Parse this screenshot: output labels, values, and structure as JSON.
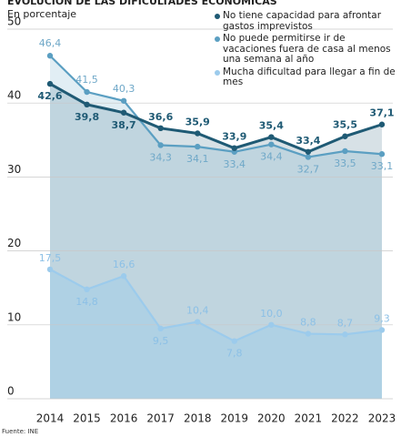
{
  "chart_data": {
    "type": "line",
    "title": "EVOLUCIÓN DE LAS DIFICULTADES ECONÓMICAS",
    "subtitle": "En porcentaje",
    "source": "Fuente: INE",
    "categories": [
      "2014",
      "2015",
      "2016",
      "2017",
      "2018",
      "2019",
      "2020",
      "2021",
      "2022",
      "2023"
    ],
    "series": [
      {
        "name": "No tiene capacidad para afrontar gastos imprevistos",
        "color": "#1f5a74",
        "values": [
          42.6,
          39.8,
          38.7,
          36.6,
          35.9,
          33.9,
          35.4,
          33.4,
          35.5,
          37.1
        ],
        "value_labels": [
          "42,6",
          "39,8",
          "38,7",
          "36,6",
          "35,9",
          "33,9",
          "35,4",
          "33,4",
          "35,5",
          "37,1"
        ]
      },
      {
        "name": "No puede permitirse ir de vacaciones fuera de casa al menos una semana al año",
        "color": "#5b9fc2",
        "values": [
          46.4,
          41.5,
          40.3,
          34.3,
          34.1,
          33.4,
          34.4,
          32.7,
          33.5,
          33.1
        ],
        "value_labels": [
          "46,4",
          "41,5",
          "40,3",
          "34,3",
          "34,1",
          "33,4",
          "34,4",
          "32,7",
          "33,5",
          "33,1"
        ]
      },
      {
        "name": "Mucha dificultad para llegar a fin de mes",
        "color": "#9ccbec",
        "values": [
          17.5,
          14.8,
          16.6,
          9.5,
          10.4,
          7.8,
          10.0,
          8.8,
          8.7,
          9.3
        ],
        "value_labels": [
          "17,5",
          "14,8",
          "16,6",
          "9,5",
          "10,4",
          "7,8",
          "10,0",
          "8,8",
          "8,7",
          "9,3"
        ]
      }
    ],
    "ylim": [
      0,
      50
    ],
    "yticks": [
      0,
      10,
      20,
      30,
      40,
      50
    ],
    "grid": true
  }
}
